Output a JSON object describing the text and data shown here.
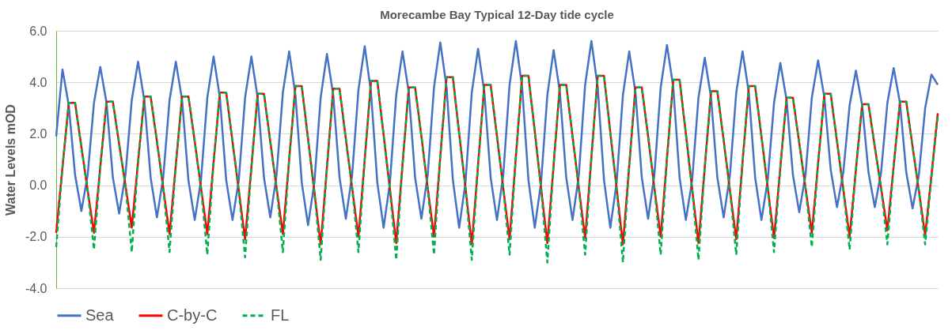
{
  "chart_data": {
    "type": "line",
    "title": "Morecambe Bay Typical 12-Day tide cycle",
    "ylabel": "Water Levels mOD",
    "categories": [
      null,
      null,
      null,
      null,
      null,
      null,
      null,
      null,
      null,
      null,
      null,
      null,
      null,
      null,
      null,
      null,
      null,
      null,
      null,
      null,
      null,
      null,
      null,
      null,
      null,
      null,
      null,
      null,
      null,
      null,
      null,
      null,
      null,
      null,
      null,
      null,
      null,
      null,
      null,
      null,
      null,
      null,
      null,
      null,
      null,
      null,
      null,
      null,
      null,
      null,
      null,
      null,
      null,
      null,
      null,
      null,
      null,
      null,
      null,
      null,
      null,
      null,
      null,
      null,
      null,
      null,
      null,
      null,
      null,
      null,
      null,
      null,
      null,
      null,
      null,
      null,
      null,
      null,
      null,
      null,
      null,
      null,
      null,
      null,
      null,
      null,
      null,
      null,
      null,
      null,
      null,
      null,
      null,
      null,
      null,
      null,
      null,
      null,
      null,
      null,
      null,
      null,
      null,
      null,
      null,
      null,
      null,
      null,
      null,
      null,
      null,
      null,
      null,
      null,
      null,
      null,
      null,
      null,
      null,
      null,
      null,
      null,
      null,
      null,
      null,
      null,
      null,
      null,
      null,
      null,
      null,
      null,
      null,
      null,
      null,
      null,
      null,
      null,
      null,
      null,
      null
    ],
    "ylim": [
      -4,
      6
    ],
    "yticks": [
      {
        "value": -4,
        "label": "-4.0"
      },
      {
        "value": -2,
        "label": "-2.0"
      },
      {
        "value": 0,
        "label": "0.0"
      },
      {
        "value": 2,
        "label": "2.0"
      },
      {
        "value": 4,
        "label": "4.0"
      },
      {
        "value": 6,
        "label": "6.0"
      }
    ],
    "tick_labels": "y",
    "grid": "y",
    "legend": "bottom",
    "series": [
      {
        "name": "Sea",
        "color": "#4472c4",
        "line_style": "solid",
        "values": [
          1.9,
          4.5,
          3.1,
          0.4,
          -1.0,
          0.4,
          3.2,
          4.6,
          3.2,
          0.3,
          -1.1,
          0.4,
          3.3,
          4.8,
          3.3,
          0.3,
          -1.25,
          0.3,
          3.3,
          4.8,
          3.3,
          0.2,
          -1.35,
          0.2,
          3.4,
          5.0,
          3.4,
          0.2,
          -1.35,
          0.2,
          3.4,
          5.0,
          3.4,
          0.3,
          -1.25,
          0.4,
          3.6,
          5.2,
          3.5,
          0.1,
          -1.55,
          0.1,
          3.4,
          5.1,
          3.5,
          0.3,
          -1.3,
          0.4,
          3.7,
          5.4,
          3.6,
          0.1,
          -1.65,
          0.1,
          3.5,
          5.2,
          3.6,
          0.3,
          -1.3,
          0.4,
          3.8,
          5.55,
          3.8,
          0.2,
          -1.65,
          0.1,
          3.6,
          5.3,
          3.6,
          0.3,
          -1.35,
          0.4,
          3.9,
          5.6,
          3.8,
          0.2,
          -1.65,
          0.1,
          3.5,
          5.25,
          3.6,
          0.3,
          -1.35,
          0.4,
          3.9,
          5.6,
          3.8,
          0.2,
          -1.65,
          0.1,
          3.5,
          5.2,
          3.6,
          0.3,
          -1.3,
          0.4,
          3.8,
          5.45,
          3.8,
          0.3,
          -1.35,
          0.2,
          3.4,
          4.95,
          3.4,
          0.3,
          -1.25,
          0.4,
          3.6,
          5.2,
          3.6,
          0.3,
          -1.35,
          0.2,
          3.2,
          4.75,
          3.3,
          0.4,
          -1.05,
          0.4,
          3.4,
          4.85,
          3.4,
          0.6,
          -0.85,
          0.5,
          3.1,
          4.45,
          3.1,
          0.5,
          -0.85,
          0.5,
          3.2,
          4.55,
          3.2,
          0.5,
          -0.9,
          0.4,
          3.0,
          4.3,
          3.9
        ]
      },
      {
        "name": "C-by-C",
        "color": "#ff0000",
        "line_style": "solid",
        "values": [
          -1.85,
          0.7,
          3.2,
          3.2,
          1.5,
          -0.2,
          -1.85,
          0.7,
          3.25,
          3.25,
          1.6,
          0.0,
          -1.65,
          0.9,
          3.45,
          3.45,
          1.7,
          -0.1,
          -1.9,
          0.8,
          3.45,
          3.45,
          1.7,
          -0.1,
          -1.9,
          0.9,
          3.6,
          3.6,
          1.7,
          -0.2,
          -2.1,
          0.7,
          3.55,
          3.55,
          1.7,
          -0.1,
          -1.9,
          1.0,
          3.85,
          3.85,
          1.8,
          -0.25,
          -2.3,
          0.7,
          3.75,
          3.75,
          1.8,
          -0.1,
          -2.0,
          1.0,
          4.05,
          4.05,
          1.95,
          -0.15,
          -2.25,
          0.8,
          3.8,
          3.8,
          1.9,
          -0.1,
          -2.0,
          1.1,
          4.2,
          4.2,
          2.0,
          -0.1,
          -2.3,
          0.8,
          3.9,
          3.9,
          1.9,
          -0.1,
          -2.1,
          1.1,
          4.25,
          4.25,
          2.1,
          -0.1,
          -2.25,
          0.8,
          3.9,
          3.9,
          1.9,
          -0.1,
          -2.05,
          1.1,
          4.25,
          4.25,
          2.05,
          -0.1,
          -2.3,
          0.75,
          3.8,
          3.8,
          1.9,
          -0.1,
          -2.0,
          1.05,
          4.1,
          4.1,
          2.0,
          -0.15,
          -2.25,
          0.7,
          3.65,
          3.65,
          1.75,
          -0.2,
          -2.1,
          0.9,
          3.85,
          3.85,
          1.9,
          -0.1,
          -2.05,
          0.7,
          3.4,
          3.4,
          1.65,
          -0.1,
          -1.85,
          0.85,
          3.55,
          3.55,
          1.7,
          -0.15,
          -2.0,
          0.6,
          3.15,
          3.15,
          1.5,
          -0.1,
          -1.75,
          0.75,
          3.25,
          3.25,
          1.5,
          -0.2,
          -1.95,
          0.4,
          2.8
        ]
      },
      {
        "name": "FL",
        "color": "#00b050",
        "line_style": "dashed",
        "values": [
          -2.4,
          0.7,
          3.2,
          3.2,
          1.5,
          -0.2,
          -2.5,
          0.7,
          3.25,
          3.25,
          1.6,
          0.0,
          -2.6,
          0.9,
          3.45,
          3.45,
          1.7,
          -0.1,
          -2.6,
          0.8,
          3.45,
          3.45,
          1.7,
          -0.1,
          -2.7,
          0.9,
          3.6,
          3.6,
          1.7,
          -0.2,
          -2.8,
          0.7,
          3.55,
          3.55,
          1.7,
          -0.1,
          -2.6,
          1.0,
          3.85,
          3.85,
          1.8,
          -0.25,
          -2.9,
          0.7,
          3.75,
          3.75,
          1.8,
          -0.1,
          -2.6,
          1.0,
          4.05,
          4.05,
          1.95,
          -0.15,
          -2.9,
          0.8,
          3.8,
          3.8,
          1.9,
          -0.1,
          -2.7,
          1.1,
          4.2,
          4.2,
          2.0,
          -0.1,
          -2.9,
          0.8,
          3.9,
          3.9,
          1.9,
          -0.1,
          -2.7,
          1.1,
          4.25,
          4.25,
          2.1,
          -0.1,
          -3.0,
          0.8,
          3.9,
          3.9,
          1.9,
          -0.1,
          -2.7,
          1.1,
          4.25,
          4.25,
          2.05,
          -0.1,
          -3.0,
          0.75,
          3.8,
          3.8,
          1.9,
          -0.1,
          -2.7,
          1.05,
          4.1,
          4.1,
          2.0,
          -0.15,
          -2.9,
          0.7,
          3.65,
          3.65,
          1.75,
          -0.2,
          -2.7,
          0.9,
          3.85,
          3.85,
          1.9,
          -0.1,
          -2.6,
          0.7,
          3.4,
          3.4,
          1.65,
          -0.1,
          -2.4,
          0.85,
          3.55,
          3.55,
          1.7,
          -0.15,
          -2.5,
          0.6,
          3.15,
          3.15,
          1.5,
          -0.1,
          -2.3,
          0.75,
          3.25,
          3.25,
          1.5,
          -0.2,
          -2.3,
          0.3,
          2.7
        ]
      }
    ]
  }
}
